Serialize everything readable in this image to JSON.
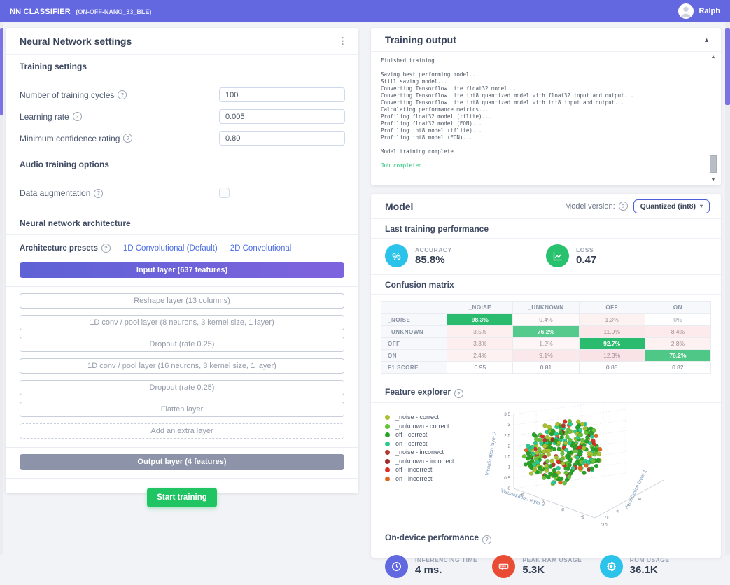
{
  "theme": {
    "accent": "#6468e0",
    "success": "#21c462",
    "link": "#4d6ee3"
  },
  "topbar": {
    "title": "NN CLASSIFIER",
    "subtitle": "(ON-OFF-NANO_33_BLE)",
    "user": "Ralph"
  },
  "nn_settings": {
    "title": "Neural Network settings",
    "training_heading": "Training settings",
    "fields": [
      {
        "name": "training-cycles",
        "label": "Number of training cycles",
        "value": "100"
      },
      {
        "name": "learning-rate",
        "label": "Learning rate",
        "value": "0.005"
      },
      {
        "name": "min-confidence",
        "label": "Minimum confidence rating",
        "value": "0.80"
      }
    ],
    "audio_heading": "Audio training options",
    "data_augmentation_label": "Data augmentation",
    "data_augmentation_checked": false,
    "architecture_heading": "Neural network architecture",
    "presets_label": "Architecture presets",
    "presets": [
      "1D Convolutional (Default)",
      "2D Convolutional"
    ],
    "input_layer": "Input layer (637 features)",
    "layers": [
      "Reshape layer (13 columns)",
      "1D conv / pool layer (8 neurons, 3 kernel size, 1 layer)",
      "Dropout (rate 0.25)",
      "1D conv / pool layer (16 neurons, 3 kernel size, 1 layer)",
      "Dropout (rate 0.25)",
      "Flatten layer"
    ],
    "add_layer_label": "Add an extra layer",
    "output_layer": "Output layer (4 features)",
    "start_button_label": "Start training"
  },
  "training_output": {
    "title": "Training output",
    "lines": [
      {
        "text": "Finished training"
      },
      {
        "text": ""
      },
      {
        "text": "Saving best performing model..."
      },
      {
        "text": "Still saving model..."
      },
      {
        "text": "Converting Tensorflow Lite float32 model..."
      },
      {
        "text": "Converting Tensorflow Lite int8 quantized model with float32 input and output..."
      },
      {
        "text": "Converting Tensorflow Lite int8 quantized model with int8 input and output..."
      },
      {
        "text": "Calculating performance metrics..."
      },
      {
        "text": "Profiling float32 model (tflite)..."
      },
      {
        "text": "Profiling float32 model (EON)..."
      },
      {
        "text": "Profiling int8 model (tflite)..."
      },
      {
        "text": "Profiling int8 model (EON)..."
      },
      {
        "text": ""
      },
      {
        "text": "Model training complete"
      },
      {
        "text": ""
      },
      {
        "text": "Job completed",
        "color": "green"
      }
    ]
  },
  "model": {
    "title": "Model",
    "version_label": "Model version:",
    "version_value": "Quantized (int8)",
    "last_training": {
      "heading": "Last training performance",
      "metrics": [
        {
          "name": "accuracy",
          "label": "ACCURACY",
          "value": "85.8%",
          "color": "#2bc3ea",
          "icon": "percent-icon"
        },
        {
          "name": "loss",
          "label": "LOSS",
          "value": "0.47",
          "color": "#28c16d",
          "icon": "chart-icon"
        }
      ]
    },
    "confusion": {
      "heading": "Confusion matrix",
      "columns": [
        "",
        "_NOISE",
        "_UNKNOWN",
        "OFF",
        "ON"
      ],
      "rows": [
        {
          "label": "_NOISE",
          "cells": [
            {
              "v": "98.3%",
              "bg": "#2abb6e",
              "fg": "#ffffff",
              "bold": true
            },
            {
              "v": "0.4%",
              "bg": "#fefafa",
              "fg": "#a18f93"
            },
            {
              "v": "1.3%",
              "bg": "#fdf2f2",
              "fg": "#a18f93"
            },
            {
              "v": "0%",
              "bg": "#ffffff",
              "fg": "#a0a6b1"
            }
          ]
        },
        {
          "label": "_UNKNOWN",
          "cells": [
            {
              "v": "3.5%",
              "bg": "#fdeff0",
              "fg": "#a18f93"
            },
            {
              "v": "76.2%",
              "bg": "#56c98c",
              "fg": "#ffffff",
              "bold": true
            },
            {
              "v": "11.9%",
              "bg": "#fbe7e9",
              "fg": "#a18f93"
            },
            {
              "v": "8.4%",
              "bg": "#fceaec",
              "fg": "#a18f93"
            }
          ]
        },
        {
          "label": "OFF",
          "cells": [
            {
              "v": "3.3%",
              "bg": "#fdeff0",
              "fg": "#a18f93"
            },
            {
              "v": "1.2%",
              "bg": "#fef6f6",
              "fg": "#a18f93"
            },
            {
              "v": "92.7%",
              "bg": "#2abb6e",
              "fg": "#ffffff",
              "bold": true
            },
            {
              "v": "2.8%",
              "bg": "#fdf1f2",
              "fg": "#a18f93"
            }
          ]
        },
        {
          "label": "ON",
          "cells": [
            {
              "v": "2.4%",
              "bg": "#fdf1f2",
              "fg": "#a18f93"
            },
            {
              "v": "9.1%",
              "bg": "#fbe8ea",
              "fg": "#a18f93"
            },
            {
              "v": "12.3%",
              "bg": "#fae3e6",
              "fg": "#a18f93"
            },
            {
              "v": "76.2%",
              "bg": "#4fc786",
              "fg": "#ffffff",
              "bold": true
            }
          ]
        },
        {
          "label": "F1 SCORE",
          "cells": [
            {
              "v": "0.95",
              "bg": "#ffffff",
              "fg": "#6e7888"
            },
            {
              "v": "0.81",
              "bg": "#ffffff",
              "fg": "#6e7888"
            },
            {
              "v": "0.85",
              "bg": "#ffffff",
              "fg": "#6e7888"
            },
            {
              "v": "0.82",
              "bg": "#ffffff",
              "fg": "#6e7888"
            }
          ]
        }
      ]
    },
    "feature_explorer": {
      "heading": "Feature explorer",
      "legend": [
        {
          "label": "_noise - correct",
          "color": "#a9bf2b"
        },
        {
          "label": "_unknown - correct",
          "color": "#67c23a"
        },
        {
          "label": "off - correct",
          "color": "#27a327"
        },
        {
          "label": "on - correct",
          "color": "#2cc98f"
        },
        {
          "label": "_noise - incorrect",
          "color": "#b03a30"
        },
        {
          "label": "_unknown - incorrect",
          "color": "#a02c2c"
        },
        {
          "label": "off - incorrect",
          "color": "#d93025"
        },
        {
          "label": "on - incorrect",
          "color": "#e0651f"
        }
      ],
      "chart_data": {
        "type": "scatter",
        "projection": "3d",
        "axes": {
          "x": {
            "label": "Visualization layer 2",
            "ticks": [
              -6,
              -7,
              -8,
              -9,
              -10
            ]
          },
          "y": {
            "label": "Visualization layer 1",
            "ticks": [
              2,
              3,
              4,
              5
            ]
          },
          "z": {
            "label": "Visualization layer 3",
            "ticks": [
              0,
              0.5,
              1,
              1.5,
              2,
              2.5,
              3,
              3.5
            ]
          }
        },
        "series": [
          {
            "name": "_noise - correct",
            "color": "#a9bf2b",
            "count": 70
          },
          {
            "name": "_unknown - correct",
            "color": "#67c23a",
            "count": 72
          },
          {
            "name": "off - correct",
            "color": "#27a327",
            "count": 95
          },
          {
            "name": "on - correct",
            "color": "#2cc98f",
            "count": 48
          },
          {
            "name": "_noise - incorrect",
            "color": "#b03a30",
            "count": 9
          },
          {
            "name": "_unknown - incorrect",
            "color": "#a02c2c",
            "count": 7
          },
          {
            "name": "off - incorrect",
            "color": "#d93025",
            "count": 14
          },
          {
            "name": "on - incorrect",
            "color": "#e0651f",
            "count": 11
          }
        ]
      }
    },
    "performance": {
      "heading": "On-device performance",
      "metrics": [
        {
          "name": "inferencing-time",
          "label": "INFERENCING TIME",
          "value": "4 ms.",
          "color": "#6268df",
          "icon": "clock-icon"
        },
        {
          "name": "peak-ram",
          "label": "PEAK RAM USAGE",
          "value": "5.3K",
          "color": "#e84c35",
          "icon": "ram-icon"
        },
        {
          "name": "rom",
          "label": "ROM USAGE",
          "value": "36.1K",
          "color": "#2bc3ea",
          "icon": "chip-icon"
        }
      ]
    }
  }
}
